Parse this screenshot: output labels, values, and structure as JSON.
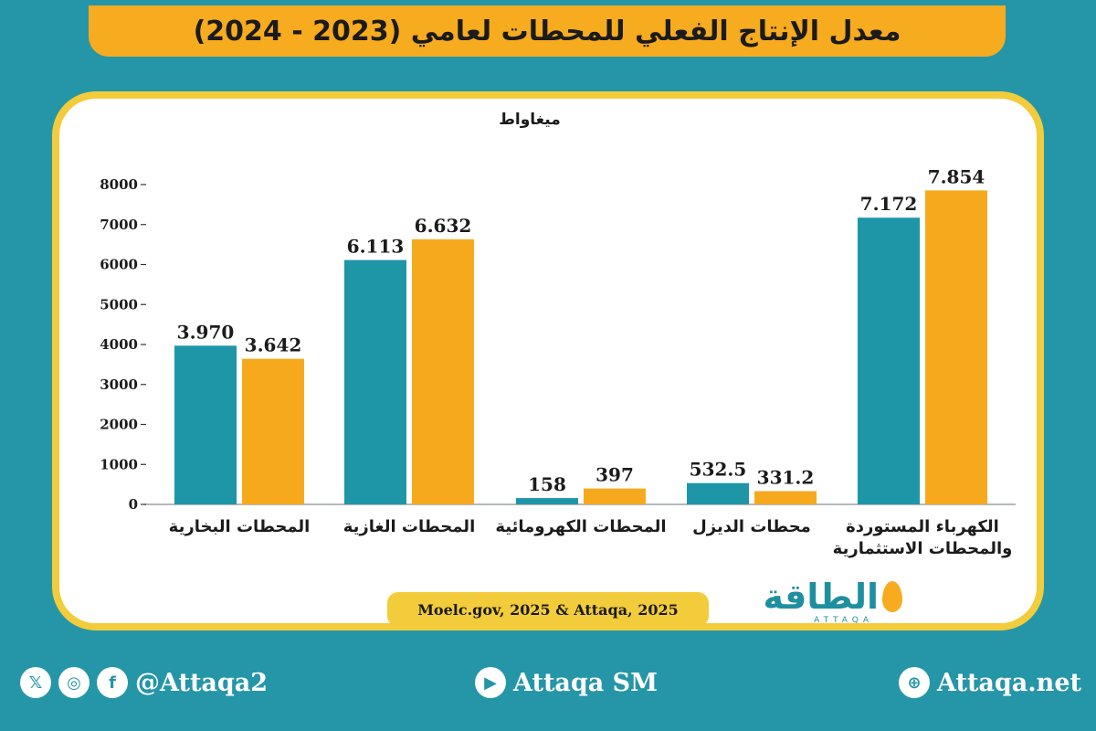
{
  "header": {
    "title": "معدل الإنتاج الفعلي للمحطات لعامي (2023 - 2024)"
  },
  "chart_data": {
    "type": "bar",
    "unit_label": "ميغاواط",
    "ylim": [
      0,
      8000
    ],
    "yticks": [
      "0",
      "1000",
      "2000",
      "3000",
      "4000",
      "5000",
      "6000",
      "7000",
      "8000"
    ],
    "categories": [
      "المحطات البخارية",
      "المحطات الغازية",
      "المحطات الكهرومائية",
      "محطات الديزل",
      "الكهرباء المستوردة والمحطات الاستثمارية"
    ],
    "category_lines": [
      [
        "المحطات البخارية"
      ],
      [
        "المحطات الغازية"
      ],
      [
        "المحطات الكهرومائية"
      ],
      [
        "محطات الديزل"
      ],
      [
        "الكهرباء المستوردة",
        "والمحطات الاستثمارية"
      ]
    ],
    "series": [
      {
        "values": [
          3970,
          6113,
          158,
          532.5,
          7172
        ],
        "labels": [
          "3.970",
          "6.113",
          "158",
          "532.5",
          "7.172"
        ],
        "color": "#1f95a8"
      },
      {
        "values": [
          3642,
          6632,
          397,
          331.2,
          7854
        ],
        "labels": [
          "3.642",
          "6.632",
          "397",
          "331.2",
          "7.854"
        ],
        "color": "#f7a91e"
      }
    ],
    "grid": false
  },
  "source": {
    "text": "Moelc.gov, 2025 & Attaqa, 2025"
  },
  "logo": {
    "text": "الطاقة",
    "sub": "ATTAQA"
  },
  "footer": {
    "social": {
      "x_glyph": "𝕏",
      "insta_glyph": "◎",
      "fb_glyph": "f",
      "handle": "@Attaqa2"
    },
    "youtube": {
      "glyph": "▶",
      "label": "Attaqa SM"
    },
    "website": {
      "glyph": "⊕",
      "label": "Attaqa.net"
    }
  }
}
